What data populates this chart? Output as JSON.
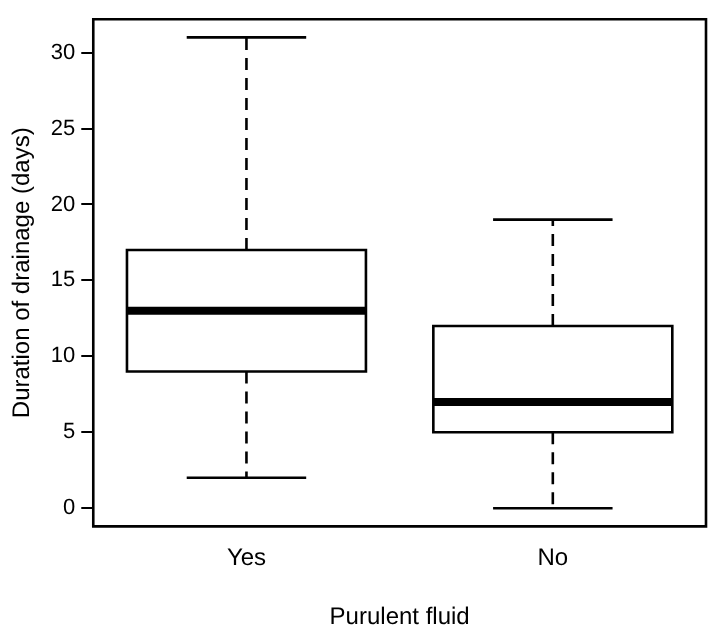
{
  "chart_data": {
    "type": "box",
    "xlabel": "Purulent fluid",
    "ylabel": "Duration of drainage (days)",
    "categories": [
      "Yes",
      "No"
    ],
    "boxes": [
      {
        "low": 2,
        "q1": 9,
        "median": 13,
        "q3": 17,
        "high": 31
      },
      {
        "low": 0,
        "q1": 5,
        "median": 7,
        "q3": 12,
        "high": 19
      }
    ],
    "color": "#000000",
    "line_style": "dashed",
    "ylim": [
      -1.2,
      32.2
    ],
    "yticks": [
      0,
      5,
      10,
      15,
      20,
      25,
      30
    ],
    "grid": false
  }
}
